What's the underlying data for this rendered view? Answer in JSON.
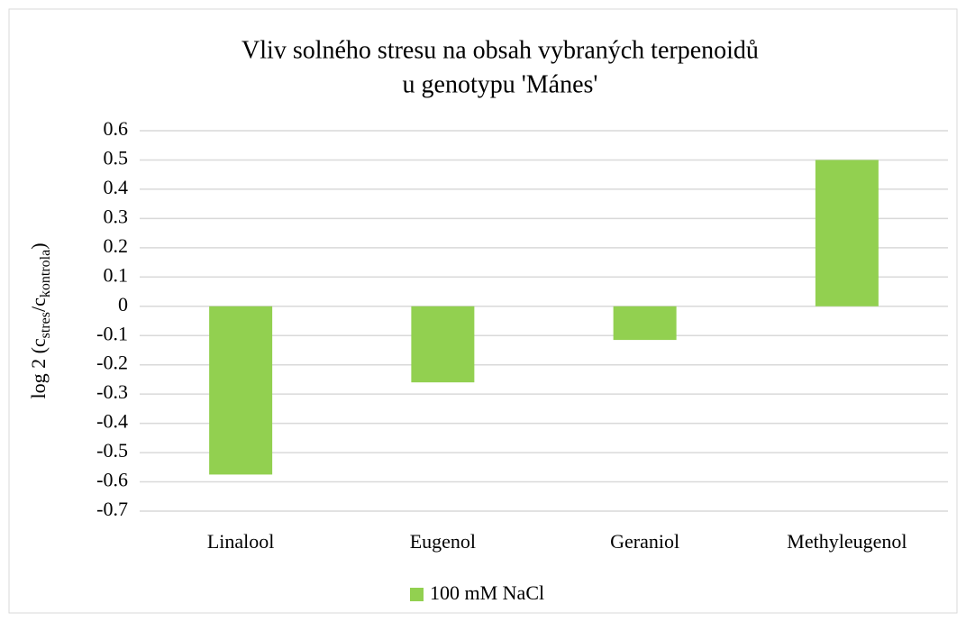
{
  "chart_data": {
    "type": "bar",
    "title": [
      "Vliv solného stresu na obsah vybraných terpenoidů",
      "u genotypu 'Mánes'"
    ],
    "ylabel": [
      "log 2 (c",
      "stres",
      "/c",
      "kontrola",
      ")"
    ],
    "categories": [
      "Linalool",
      "Eugenol",
      "Geraniol",
      "Methyleugenol"
    ],
    "series": [
      {
        "name": "100 mM NaCl",
        "color": "#92d050",
        "values": [
          -0.575,
          -0.26,
          -0.115,
          0.5
        ]
      }
    ],
    "ylim": [
      -0.7,
      0.6
    ],
    "yticks": [
      0.6,
      0.5,
      0.4,
      0.3,
      0.2,
      0.1,
      0,
      -0.1,
      -0.2,
      -0.3,
      -0.4,
      -0.5,
      -0.6,
      -0.7
    ],
    "grid": true,
    "legend": "bottom"
  }
}
